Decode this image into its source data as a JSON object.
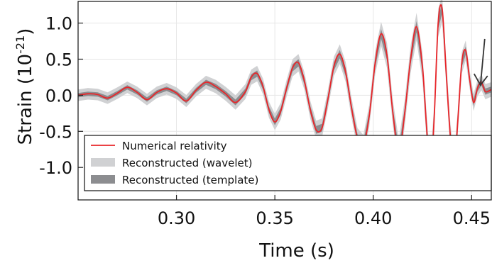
{
  "chart_data": {
    "type": "line",
    "xlabel": "Time (s)",
    "ylabel_prefix": "Strain (10",
    "ylabel_exponent": "-21",
    "ylabel_suffix": ")",
    "xlim": [
      0.25,
      0.46
    ],
    "ylim": [
      -1.45,
      1.3
    ],
    "xticks": [
      {
        "value": 0.3,
        "label": "0.30"
      },
      {
        "value": 0.35,
        "label": "0.35"
      },
      {
        "value": 0.4,
        "label": "0.40"
      },
      {
        "value": 0.45,
        "label": "0.45"
      }
    ],
    "yticks": [
      {
        "value": 1.0,
        "label": "1.0"
      },
      {
        "value": 0.5,
        "label": "0.5"
      },
      {
        "value": 0.0,
        "label": "0.0"
      },
      {
        "value": -0.5,
        "label": "-0.5"
      },
      {
        "value": -1.0,
        "label": "-1.0"
      }
    ],
    "grid": true,
    "legend_position": "bottom-left",
    "series": [
      {
        "name": "Numerical relativity",
        "color": "#e8262a",
        "style": "line"
      },
      {
        "name": "Reconstructed (wavelet)",
        "color": "#d0d1d3",
        "style": "band"
      },
      {
        "name": "Reconstructed (template)",
        "color": "#8c8d90",
        "style": "band"
      }
    ],
    "numerical_relativity": [
      [
        0.25,
        0.0
      ],
      [
        0.255,
        0.02
      ],
      [
        0.26,
        0.01
      ],
      [
        0.265,
        -0.04
      ],
      [
        0.27,
        0.03
      ],
      [
        0.275,
        0.11
      ],
      [
        0.28,
        0.04
      ],
      [
        0.285,
        -0.06
      ],
      [
        0.29,
        0.04
      ],
      [
        0.295,
        0.09
      ],
      [
        0.3,
        0.03
      ],
      [
        0.305,
        -0.08
      ],
      [
        0.31,
        0.07
      ],
      [
        0.315,
        0.18
      ],
      [
        0.32,
        0.12
      ],
      [
        0.325,
        0.02
      ],
      [
        0.33,
        -0.1
      ],
      [
        0.335,
        0.05
      ],
      [
        0.338,
        0.25
      ],
      [
        0.341,
        0.3
      ],
      [
        0.344,
        0.12
      ],
      [
        0.347,
        -0.2
      ],
      [
        0.35,
        -0.37
      ],
      [
        0.353,
        -0.22
      ],
      [
        0.356,
        0.1
      ],
      [
        0.359,
        0.38
      ],
      [
        0.362,
        0.45
      ],
      [
        0.365,
        0.2
      ],
      [
        0.368,
        -0.2
      ],
      [
        0.371,
        -0.48
      ],
      [
        0.374,
        -0.45
      ],
      [
        0.377,
        -0.05
      ],
      [
        0.38,
        0.4
      ],
      [
        0.383,
        0.57
      ],
      [
        0.386,
        0.32
      ],
      [
        0.389,
        -0.18
      ],
      [
        0.392,
        -0.6
      ],
      [
        0.395,
        -0.7
      ],
      [
        0.398,
        -0.28
      ],
      [
        0.401,
        0.45
      ],
      [
        0.404,
        0.85
      ],
      [
        0.407,
        0.55
      ],
      [
        0.41,
        -0.25
      ],
      [
        0.413,
        -0.8
      ],
      [
        0.416,
        -0.25
      ],
      [
        0.419,
        0.5
      ],
      [
        0.422,
        0.95
      ],
      [
        0.425,
        0.4
      ],
      [
        0.427,
        -0.4
      ],
      [
        0.429,
        -1.12
      ],
      [
        0.431,
        -0.3
      ],
      [
        0.433,
        1.0
      ],
      [
        0.435,
        1.2
      ],
      [
        0.437,
        0.35
      ],
      [
        0.439,
        -0.5
      ],
      [
        0.441,
        -1.05
      ],
      [
        0.443,
        -0.35
      ],
      [
        0.445,
        0.45
      ],
      [
        0.447,
        0.62
      ],
      [
        0.449,
        0.22
      ],
      [
        0.451,
        -0.1
      ],
      [
        0.453,
        0.1
      ],
      [
        0.455,
        0.18
      ],
      [
        0.457,
        0.05
      ],
      [
        0.46,
        0.08
      ]
    ],
    "wavelet_band_halfwidth": [
      [
        0.25,
        0.08
      ],
      [
        0.3,
        0.08
      ],
      [
        0.33,
        0.1
      ],
      [
        0.36,
        0.12
      ],
      [
        0.39,
        0.14
      ],
      [
        0.41,
        0.18
      ],
      [
        0.43,
        0.2
      ],
      [
        0.44,
        0.18
      ],
      [
        0.45,
        0.12
      ],
      [
        0.46,
        0.1
      ]
    ],
    "template_band_halfwidth": [
      [
        0.25,
        0.03
      ],
      [
        0.3,
        0.03
      ],
      [
        0.33,
        0.04
      ],
      [
        0.36,
        0.05
      ],
      [
        0.39,
        0.06
      ],
      [
        0.41,
        0.07
      ],
      [
        0.43,
        0.08
      ],
      [
        0.44,
        0.07
      ],
      [
        0.45,
        0.05
      ],
      [
        0.46,
        0.04
      ]
    ],
    "annotation": {
      "type": "arrow",
      "x": 0.4545,
      "y_from": 0.78,
      "y_to": 0.14
    }
  }
}
